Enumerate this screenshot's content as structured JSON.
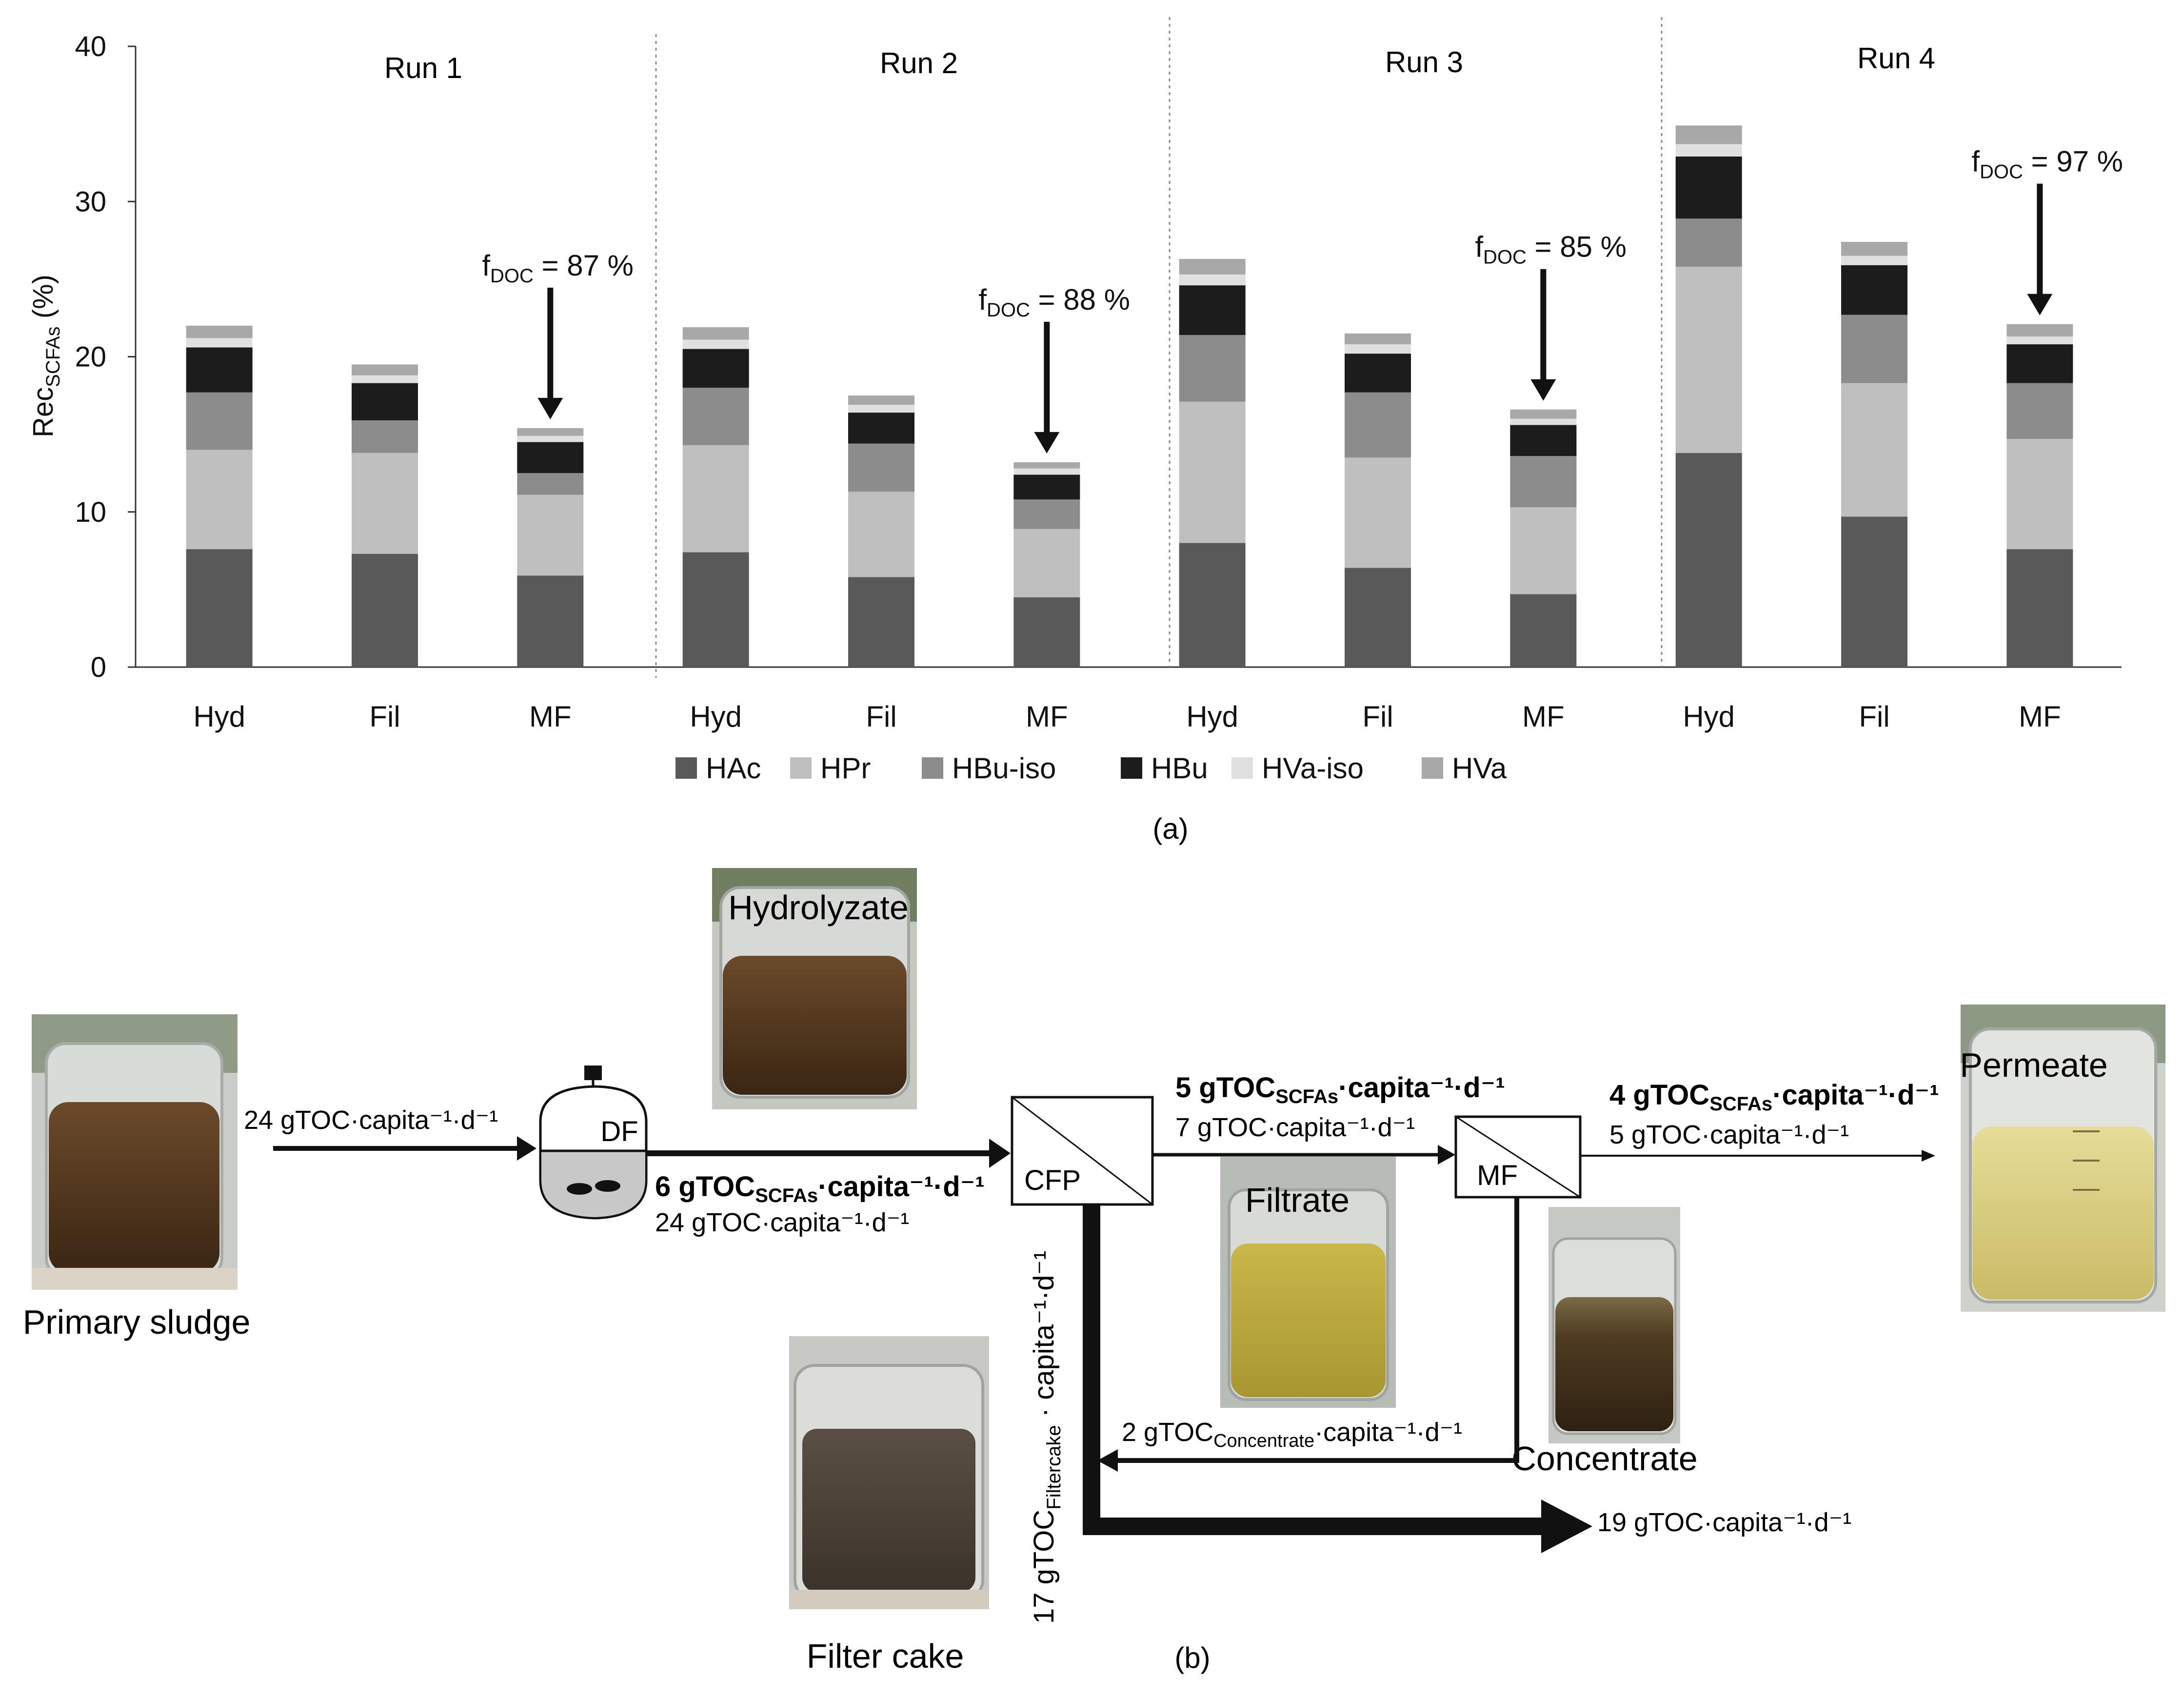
{
  "chart_data": {
    "type": "bar",
    "stacked": true,
    "ylabel_main": "Rec",
    "ylabel_sub": "SCFAs",
    "ylabel_tail": " (%)",
    "ylim": [
      0,
      40
    ],
    "yticks": [
      "0",
      "10",
      "20",
      "30",
      "40"
    ],
    "categories": [
      "Hyd",
      "Fil",
      "MF",
      "Hyd",
      "Fil",
      "MF",
      "Hyd",
      "Fil",
      "MF",
      "Hyd",
      "Fil",
      "MF"
    ],
    "groups": [
      "Run 1",
      "Run 2",
      "Run 3",
      "Run 4"
    ],
    "series": [
      {
        "name": "HAc",
        "color": "#595959",
        "values": [
          7.6,
          7.3,
          5.9,
          7.4,
          5.8,
          4.5,
          8.0,
          6.4,
          4.7,
          13.8,
          9.7,
          7.6
        ]
      },
      {
        "name": "HPr",
        "color": "#bfbfbf",
        "values": [
          6.4,
          6.5,
          5.2,
          6.9,
          5.5,
          4.4,
          9.1,
          7.1,
          5.6,
          12.0,
          8.6,
          7.1
        ]
      },
      {
        "name": "HBu-iso",
        "color": "#8c8c8c",
        "values": [
          3.7,
          2.1,
          1.4,
          3.7,
          3.1,
          1.9,
          4.3,
          4.2,
          3.3,
          3.1,
          4.4,
          3.6
        ]
      },
      {
        "name": "HBu",
        "color": "#1c1c1c",
        "values": [
          2.9,
          2.4,
          2.0,
          2.5,
          2.0,
          1.6,
          3.2,
          2.5,
          2.0,
          4.0,
          3.2,
          2.5
        ]
      },
      {
        "name": "HVa-iso",
        "color": "#e0e0e0",
        "values": [
          0.6,
          0.5,
          0.4,
          0.6,
          0.5,
          0.4,
          0.7,
          0.6,
          0.4,
          0.8,
          0.6,
          0.5
        ]
      },
      {
        "name": "HVa",
        "color": "#a8a8a8",
        "values": [
          0.8,
          0.7,
          0.5,
          0.8,
          0.6,
          0.4,
          1.0,
          0.7,
          0.6,
          1.2,
          0.9,
          0.8
        ]
      }
    ],
    "annotations": [
      {
        "text_main": "f",
        "text_sub": "DOC",
        "text_tail": " = 87 %",
        "target_index": 2
      },
      {
        "text_main": "f",
        "text_sub": "DOC",
        "text_tail": " = 88 %",
        "target_index": 5
      },
      {
        "text_main": "f",
        "text_sub": "DOC",
        "text_tail": " = 85 %",
        "target_index": 8
      },
      {
        "text_main": "f",
        "text_sub": "DOC",
        "text_tail": " = 97 %",
        "target_index": 11
      }
    ],
    "panel_label": "(a)"
  },
  "diagram": {
    "panel_label": "(b)",
    "photos": {
      "primary_sludge": "Primary sludge",
      "hydrolyzate": "Hydrolyzate",
      "filtrate": "Filtrate",
      "permeate": "Permeate",
      "concentrate": "Concentrate",
      "filter_cake": "Filter cake"
    },
    "units": {
      "df": "DF",
      "cfp": "CFP",
      "mf": "MF"
    },
    "flows": {
      "sludge_in": "24 gTOC·capita⁻¹·d⁻¹",
      "df_out_bold": "6 gTOC",
      "df_out_bold_sub": "SCFAs",
      "df_out_bold_tail": "·capita⁻¹·d⁻¹",
      "df_out": "24 gTOC·capita⁻¹·d⁻¹",
      "cfp_out_bold": "5 gTOC",
      "cfp_out_bold_sub": "SCFAs",
      "cfp_out_bold_tail": "·capita⁻¹·d⁻¹",
      "cfp_out": "7 gTOC·capita⁻¹·d⁻¹",
      "mf_out_bold": "4 gTOC",
      "mf_out_bold_sub": "SCFAs",
      "mf_out_bold_tail": "·capita⁻¹·d⁻¹",
      "mf_out": "5 gTOC·capita⁻¹·d⁻¹",
      "concentrate_main": "2 gTOC",
      "concentrate_sub": "Concentrate",
      "concentrate_tail": "·capita⁻¹·d⁻¹",
      "filtercake_main": "17 gTOC",
      "filtercake_sub": "Filtercake",
      "filtercake_tail": " · capita⁻¹·d⁻¹",
      "cake_out": "19 gTOC·capita⁻¹·d⁻¹"
    }
  }
}
